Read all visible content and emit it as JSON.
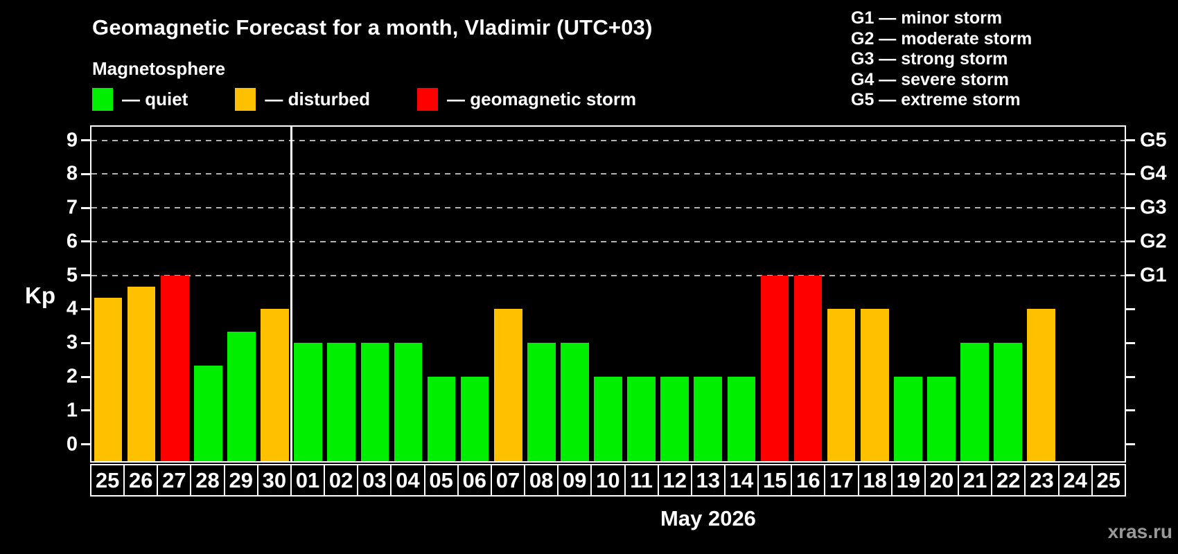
{
  "title": "Geomagnetic Forecast for a month, Vladimir (UTC+03)",
  "subtitle": "Magnetosphere",
  "legend": {
    "items": [
      {
        "label": "— quiet",
        "status": "quiet"
      },
      {
        "label": "— disturbed",
        "status": "disturbed"
      },
      {
        "label": "— geomagnetic storm",
        "status": "storm"
      }
    ]
  },
  "g_legend": [
    "G1 — minor storm",
    "G2 — moderate storm",
    "G3 — strong storm",
    "G4 — severe storm",
    "G5 — extreme storm"
  ],
  "watermark": "xras.ru",
  "chart_data": {
    "type": "bar",
    "title": "Geomagnetic Forecast for a month, Vladimir (UTC+03)",
    "xlabel": "May 2026",
    "ylabel": "Kp",
    "ylim": [
      -0.5,
      9.4
    ],
    "yticks": [
      0,
      1,
      2,
      3,
      4,
      5,
      6,
      7,
      8,
      9
    ],
    "gridline_values": [
      5,
      6,
      7,
      8,
      9
    ],
    "grid": "horizontal dashed gray lines at Kp 5-9",
    "legend_position": "top-left",
    "right_axis_labels": [
      {
        "value": 5,
        "label": "G1"
      },
      {
        "value": 6,
        "label": "G2"
      },
      {
        "value": 7,
        "label": "G3"
      },
      {
        "value": 8,
        "label": "G4"
      },
      {
        "value": 9,
        "label": "G5"
      }
    ],
    "colors": {
      "quiet": "#00ee00",
      "disturbed": "#ffc000",
      "storm": "#ff0000"
    },
    "month_separator_after_index": 5,
    "days": [
      {
        "label": "25",
        "value": 4.33,
        "status": "disturbed"
      },
      {
        "label": "26",
        "value": 4.67,
        "status": "disturbed"
      },
      {
        "label": "27",
        "value": 5,
        "status": "storm"
      },
      {
        "label": "28",
        "value": 2.33,
        "status": "quiet"
      },
      {
        "label": "29",
        "value": 3.33,
        "status": "quiet"
      },
      {
        "label": "30",
        "value": 4,
        "status": "disturbed"
      },
      {
        "label": "01",
        "value": 3,
        "status": "quiet"
      },
      {
        "label": "02",
        "value": 3,
        "status": "quiet"
      },
      {
        "label": "03",
        "value": 3,
        "status": "quiet"
      },
      {
        "label": "04",
        "value": 3,
        "status": "quiet"
      },
      {
        "label": "05",
        "value": 2,
        "status": "quiet"
      },
      {
        "label": "06",
        "value": 2,
        "status": "quiet"
      },
      {
        "label": "07",
        "value": 4,
        "status": "disturbed"
      },
      {
        "label": "08",
        "value": 3,
        "status": "quiet"
      },
      {
        "label": "09",
        "value": 3,
        "status": "quiet"
      },
      {
        "label": "10",
        "value": 2,
        "status": "quiet"
      },
      {
        "label": "11",
        "value": 2,
        "status": "quiet"
      },
      {
        "label": "12",
        "value": 2,
        "status": "quiet"
      },
      {
        "label": "13",
        "value": 2,
        "status": "quiet"
      },
      {
        "label": "14",
        "value": 2,
        "status": "quiet"
      },
      {
        "label": "15",
        "value": 5,
        "status": "storm"
      },
      {
        "label": "16",
        "value": 5,
        "status": "storm"
      },
      {
        "label": "17",
        "value": 4,
        "status": "disturbed"
      },
      {
        "label": "18",
        "value": 4,
        "status": "disturbed"
      },
      {
        "label": "19",
        "value": 2,
        "status": "quiet"
      },
      {
        "label": "20",
        "value": 2,
        "status": "quiet"
      },
      {
        "label": "21",
        "value": 3,
        "status": "quiet"
      },
      {
        "label": "22",
        "value": 3,
        "status": "quiet"
      },
      {
        "label": "23",
        "value": 4,
        "status": "disturbed"
      },
      {
        "label": "24",
        "value": null,
        "status": "none"
      },
      {
        "label": "25",
        "value": null,
        "status": "none"
      }
    ]
  }
}
